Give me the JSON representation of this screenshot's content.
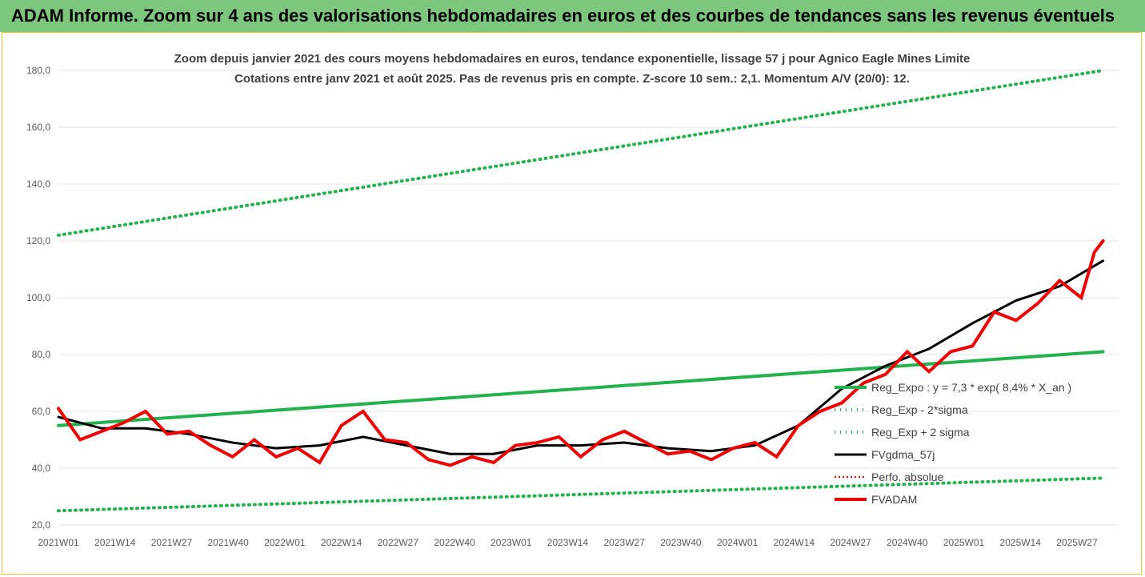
{
  "header": "ADAM Informe. Zoom sur 4 ans des valorisations hebdomadaires en euros et des courbes de tendances sans les revenus éventuels",
  "chart_data": {
    "type": "line",
    "title": "Zoom depuis janvier 2021 des cours moyens hebdomadaires en euros, tendance exponentielle, lissage 57 j pour Agnico Eagle Mines Limite",
    "subtitle": "Cotations entre janv 2021 et août 2025. Pas de revenus pris en compte. Z-score 10 sem.: 2,1. Momentum A/V (20/0): 12.",
    "ylim": [
      20,
      180
    ],
    "yticks": [
      "20,0",
      "40,0",
      "60,0",
      "80,0",
      "100,0",
      "120,0",
      "140,0",
      "160,0",
      "180,0"
    ],
    "xticks": [
      "2021W01",
      "2021W14",
      "2021W27",
      "2021W40",
      "2022W01",
      "2022W14",
      "2022W27",
      "2022W40",
      "2023W01",
      "2023W14",
      "2023W27",
      "2023W40",
      "2024W01",
      "2024W14",
      "2024W27",
      "2024W40",
      "2025W01",
      "2025W14",
      "2025W27"
    ],
    "legend": [
      "Reg_Expo : y = 7,3 * exp( 8,4% *  X_an )",
      "Reg_Exp - 2*sigma",
      "Reg_Exp + 2 sigma",
      "FVgdma_57j",
      "Perfo. absolue",
      "FVADAM"
    ],
    "series": [
      {
        "name": "Reg_Expo : y = 7,3 * exp( 8,4% *  X_an )",
        "x": [
          0,
          240
        ],
        "values": [
          55,
          81
        ]
      },
      {
        "name": "Reg_Exp - 2*sigma",
        "x": [
          0,
          240
        ],
        "values": [
          25,
          36.5
        ]
      },
      {
        "name": "Reg_Exp + 2 sigma",
        "x": [
          0,
          240
        ],
        "values": [
          122,
          180
        ]
      },
      {
        "name": "FVgdma_57j",
        "x": [
          0,
          10,
          20,
          30,
          40,
          50,
          60,
          70,
          80,
          90,
          100,
          110,
          120,
          130,
          140,
          150,
          160,
          170,
          180,
          190,
          200,
          210,
          220,
          230,
          240
        ],
        "values": [
          58,
          54,
          54,
          52,
          49,
          47,
          48,
          51,
          48,
          45,
          45,
          48,
          48,
          49,
          47,
          46,
          48,
          55,
          68,
          76,
          82,
          91,
          99,
          104,
          113
        ]
      },
      {
        "name": "FVADAM",
        "x": [
          0,
          5,
          10,
          15,
          20,
          25,
          30,
          35,
          40,
          45,
          50,
          55,
          60,
          65,
          70,
          75,
          80,
          85,
          90,
          95,
          100,
          105,
          110,
          115,
          120,
          125,
          130,
          135,
          140,
          145,
          150,
          155,
          160,
          165,
          170,
          175,
          180,
          185,
          190,
          195,
          200,
          205,
          210,
          215,
          220,
          225,
          230,
          235,
          238,
          240
        ],
        "values": [
          61,
          50,
          53,
          56,
          60,
          52,
          53,
          48,
          44,
          50,
          44,
          47,
          42,
          55,
          60,
          50,
          49,
          43,
          41,
          44,
          42,
          48,
          49,
          51,
          44,
          50,
          53,
          49,
          45,
          46,
          43,
          47,
          49,
          44,
          55,
          60,
          63,
          70,
          73,
          81,
          74,
          81,
          83,
          95,
          92,
          98,
          106,
          100,
          116,
          120
        ]
      }
    ]
  }
}
